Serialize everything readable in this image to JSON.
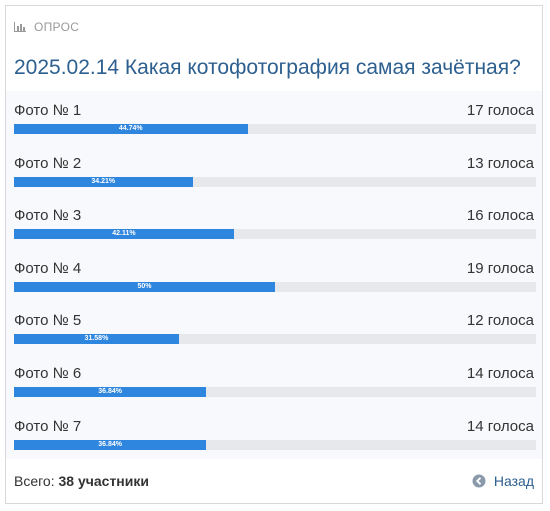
{
  "header": {
    "label": "ОПРОС",
    "icon": "bar-chart-icon"
  },
  "title": "2025.02.14 Какая котофотография самая зачётная?",
  "options": [
    {
      "label": "Фото № 1",
      "votes": "17 голоса",
      "percent_text": "44.74%",
      "percent": 44.74
    },
    {
      "label": "Фото № 2",
      "votes": "13 голоса",
      "percent_text": "34.21%",
      "percent": 34.21
    },
    {
      "label": "Фото № 3",
      "votes": "16 голоса",
      "percent_text": "42.11%",
      "percent": 42.11
    },
    {
      "label": "Фото № 4",
      "votes": "19 голоса",
      "percent_text": "50%",
      "percent": 50
    },
    {
      "label": "Фото № 5",
      "votes": "12 голоса",
      "percent_text": "31.58%",
      "percent": 31.58
    },
    {
      "label": "Фото № 6",
      "votes": "14 голоса",
      "percent_text": "36.84%",
      "percent": 36.84
    },
    {
      "label": "Фото № 7",
      "votes": "14 голоса",
      "percent_text": "36.84%",
      "percent": 36.84
    }
  ],
  "footer": {
    "total_label": "Всего:",
    "total_value": "38 участники",
    "back_label": "Назад",
    "back_icon": "arrow-left-circle-icon"
  },
  "colors": {
    "accent": "#2f86de",
    "title": "#2d5f8f",
    "track": "#e6e8ec"
  }
}
